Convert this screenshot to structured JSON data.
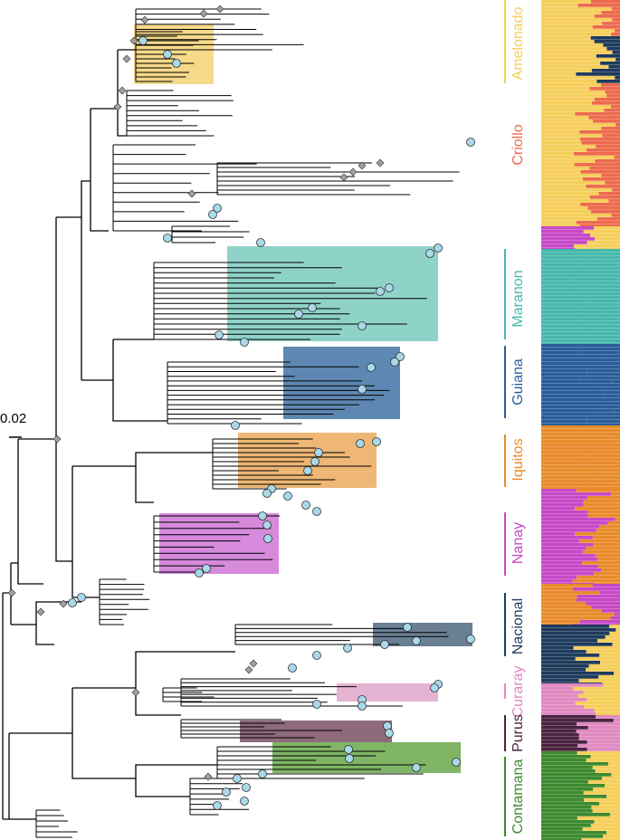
{
  "scale_bar": {
    "label": "0.02"
  },
  "groups": [
    {
      "id": "amelonado",
      "label": "Amelonado",
      "color": "#f6cf5a",
      "box_color": "#f6d98a"
    },
    {
      "id": "criollo",
      "label": "Criollo",
      "color": "#ee6a4e",
      "box_color": null
    },
    {
      "id": "maranon",
      "label": "Maranon",
      "color": "#45b8ac",
      "box_color": "#8fd3c8"
    },
    {
      "id": "guiana",
      "label": "Guiana",
      "color": "#2a5d9a",
      "box_color": "#5e88b3"
    },
    {
      "id": "iquitos",
      "label": "Iquitos",
      "color": "#e98b2a",
      "box_color": "#eeb775"
    },
    {
      "id": "nanay",
      "label": "Nanay",
      "color": "#c848c8",
      "box_color": "#d68adc"
    },
    {
      "id": "nacional",
      "label": "Nacional",
      "color": "#1f3b5c",
      "box_color": "#6a7f93"
    },
    {
      "id": "curaray",
      "label": "Curaray",
      "color": "#e089c0",
      "box_color": "#e5b3d2"
    },
    {
      "id": "purus",
      "label": "Purus",
      "color": "#4a2440",
      "box_color": "#8e6a7c"
    },
    {
      "id": "contamana",
      "label": "Contamana",
      "color": "#3c8a2e",
      "box_color": "#7fb565"
    }
  ],
  "colors": {
    "branch": "#000000",
    "node_circle": "#a8d8ea",
    "node_diamond": "#a0a0a0",
    "white_line": "#f5f5f5"
  }
}
